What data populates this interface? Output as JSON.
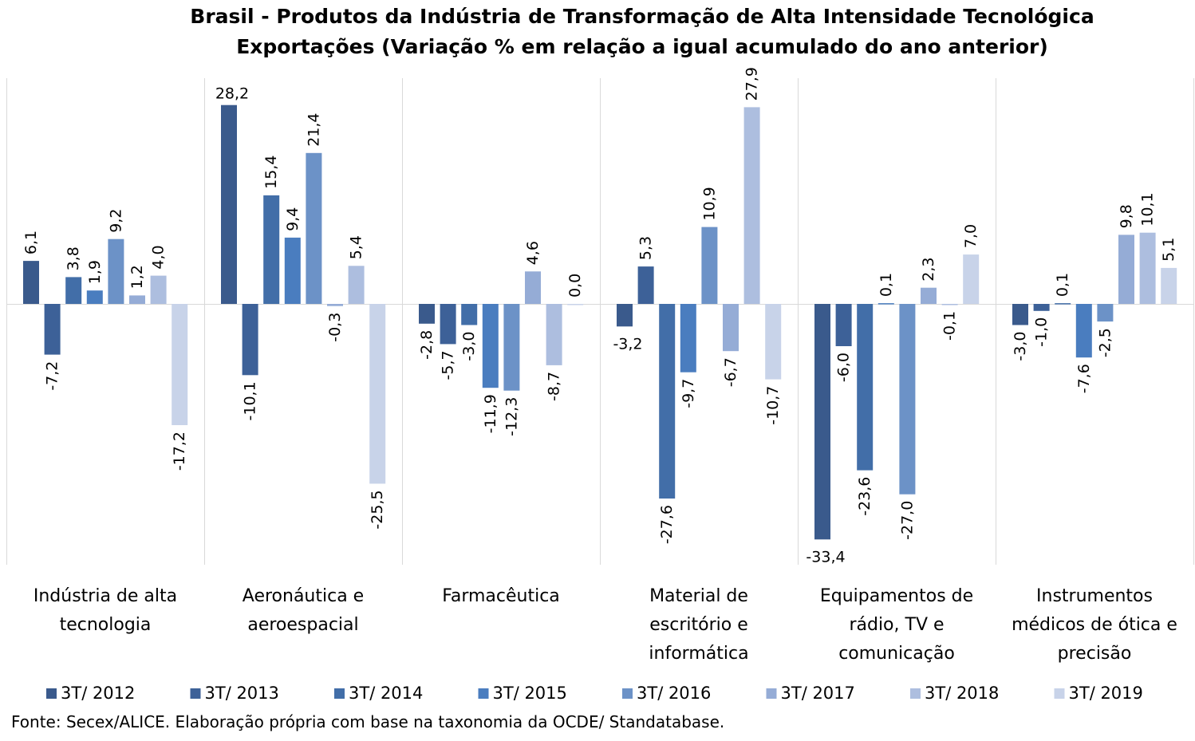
{
  "chart_data": {
    "type": "bar",
    "title": "Brasil - Produtos da Indústria de Transformação de Alta Intensidade Tecnológica",
    "subtitle": "Exportações (Variação % em relação a igual acumulado do ano anterior)",
    "categories": [
      [
        "Indústria de alta",
        "tecnologia"
      ],
      [
        "Aeronáutica e",
        "aeroespacial"
      ],
      [
        "Farmacêutica"
      ],
      [
        "Material de",
        "escritório e",
        "informática"
      ],
      [
        "Equipamentos de",
        "rádio, TV e",
        "comunicação"
      ],
      [
        "Instrumentos",
        "médicos de ótica e",
        "precisão"
      ]
    ],
    "series": [
      {
        "name": "3T/ 2012",
        "color": "#3a5a8c",
        "values": [
          6.1,
          28.2,
          -2.8,
          -3.2,
          -33.4,
          -3.0
        ],
        "labels": [
          "6,1",
          "28,2",
          "-2,8",
          "-3,2",
          "-33,4",
          "-3,0"
        ]
      },
      {
        "name": "3T/ 2013",
        "color": "#3d6198",
        "values": [
          -7.2,
          -10.1,
          -5.7,
          5.3,
          -6.0,
          -1.0
        ],
        "labels": [
          "-7,2",
          "-10,1",
          "-5,7",
          "5,3",
          "-6,0",
          "-1,0"
        ]
      },
      {
        "name": "3T/ 2014",
        "color": "#426ea8",
        "values": [
          3.8,
          15.4,
          -3.0,
          -27.6,
          -23.6,
          0.1
        ],
        "labels": [
          "3,8",
          "15,4",
          "-3,0",
          "-27,6",
          "-23,6",
          "0,1"
        ]
      },
      {
        "name": "3T/ 2015",
        "color": "#4a7dbf",
        "values": [
          1.9,
          9.4,
          -11.9,
          -9.7,
          0.1,
          -7.6
        ],
        "labels": [
          "1,9",
          "9,4",
          "-11,9",
          "-9,7",
          "0,1",
          "-7,6"
        ]
      },
      {
        "name": "3T/ 2016",
        "color": "#6c92c7",
        "values": [
          9.2,
          21.4,
          -12.3,
          10.9,
          -27.0,
          -2.5
        ],
        "labels": [
          "9,2",
          "21,4",
          "-12,3",
          "10,9",
          "-27,0",
          "-2,5"
        ]
      },
      {
        "name": "3T/ 2017",
        "color": "#95acd6",
        "values": [
          1.2,
          -0.3,
          4.6,
          -6.7,
          2.3,
          9.8
        ],
        "labels": [
          "1,2",
          "-0,3",
          "4,6",
          "-6,7",
          "2,3",
          "9,8"
        ]
      },
      {
        "name": "3T/ 2018",
        "color": "#adbedf",
        "values": [
          4.0,
          5.4,
          -8.7,
          27.9,
          -0.1,
          10.1
        ],
        "labels": [
          "4,0",
          "5,4",
          "-8,7",
          "27,9",
          "-0,1",
          "10,1"
        ]
      },
      {
        "name": "3T/ 2019",
        "color": "#c8d3e9",
        "values": [
          -17.2,
          -25.5,
          0.0,
          -10.7,
          7.0,
          5.1
        ],
        "labels": [
          "-17,2",
          "-25,5",
          "0,0",
          "-10,7",
          "7,0",
          "5,1"
        ]
      }
    ],
    "legend": "bottom",
    "grid": false
  },
  "footer": "Fonte: Secex/ALICE. Elaboração própria com base na taxonomia da OCDE/ Standatabase."
}
